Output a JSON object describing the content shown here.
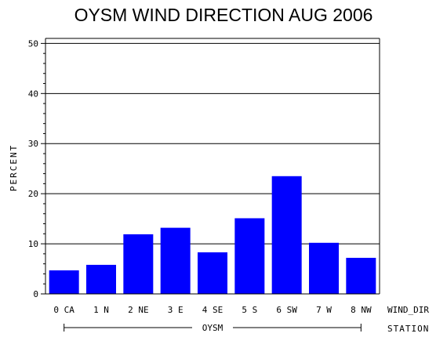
{
  "chart_data": {
    "type": "bar",
    "title": "OYSM WIND DIRECTION AUG 2006",
    "ylabel": "PERCENT",
    "xlabel": "WIND_DIR",
    "group_axis_label": "STATION",
    "group_name": "OYSM",
    "categories": [
      "0 CA",
      "1 N",
      "2 NE",
      "3 E",
      "4 SE",
      "5 S",
      "6 SW",
      "7 W",
      "8 NW"
    ],
    "values": [
      4.7,
      5.8,
      11.9,
      13.2,
      8.3,
      15.1,
      23.5,
      10.2,
      7.2
    ],
    "ylim": [
      0,
      51
    ],
    "yticks": [
      0,
      10,
      20,
      30,
      40,
      50
    ],
    "grid": true,
    "bar_color": "#0000ff"
  }
}
